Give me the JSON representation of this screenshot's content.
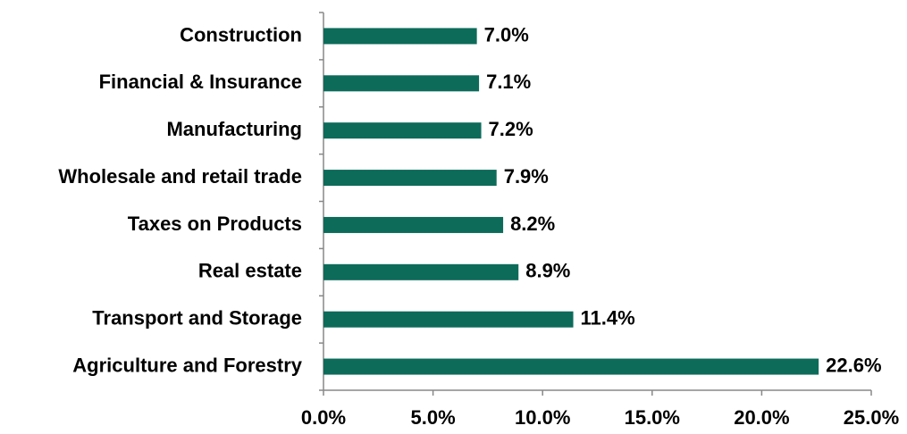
{
  "chart_data": {
    "type": "hbar",
    "categories": [
      "Construction",
      "Financial & Insurance",
      "Manufacturing",
      "Wholesale and retail trade",
      "Taxes on Products",
      "Real estate",
      "Transport and Storage",
      "Agriculture and Forestry"
    ],
    "values": [
      7.0,
      7.1,
      7.2,
      7.9,
      8.2,
      8.9,
      11.4,
      22.6
    ],
    "value_labels": [
      "7.0%",
      "7.1%",
      "7.2%",
      "7.9%",
      "8.2%",
      "8.9%",
      "11.4%",
      "22.6%"
    ],
    "color": "#0d6b5a",
    "xlim": [
      0,
      25
    ],
    "xticks": [
      {
        "value": 0,
        "label": "0.0%"
      },
      {
        "value": 5,
        "label": "5.0%"
      },
      {
        "value": 10,
        "label": "10.0%"
      },
      {
        "value": 15,
        "label": "15.0%"
      },
      {
        "value": 20,
        "label": "20.0%"
      },
      {
        "value": 25,
        "label": "25.0%"
      }
    ],
    "grid": false
  }
}
